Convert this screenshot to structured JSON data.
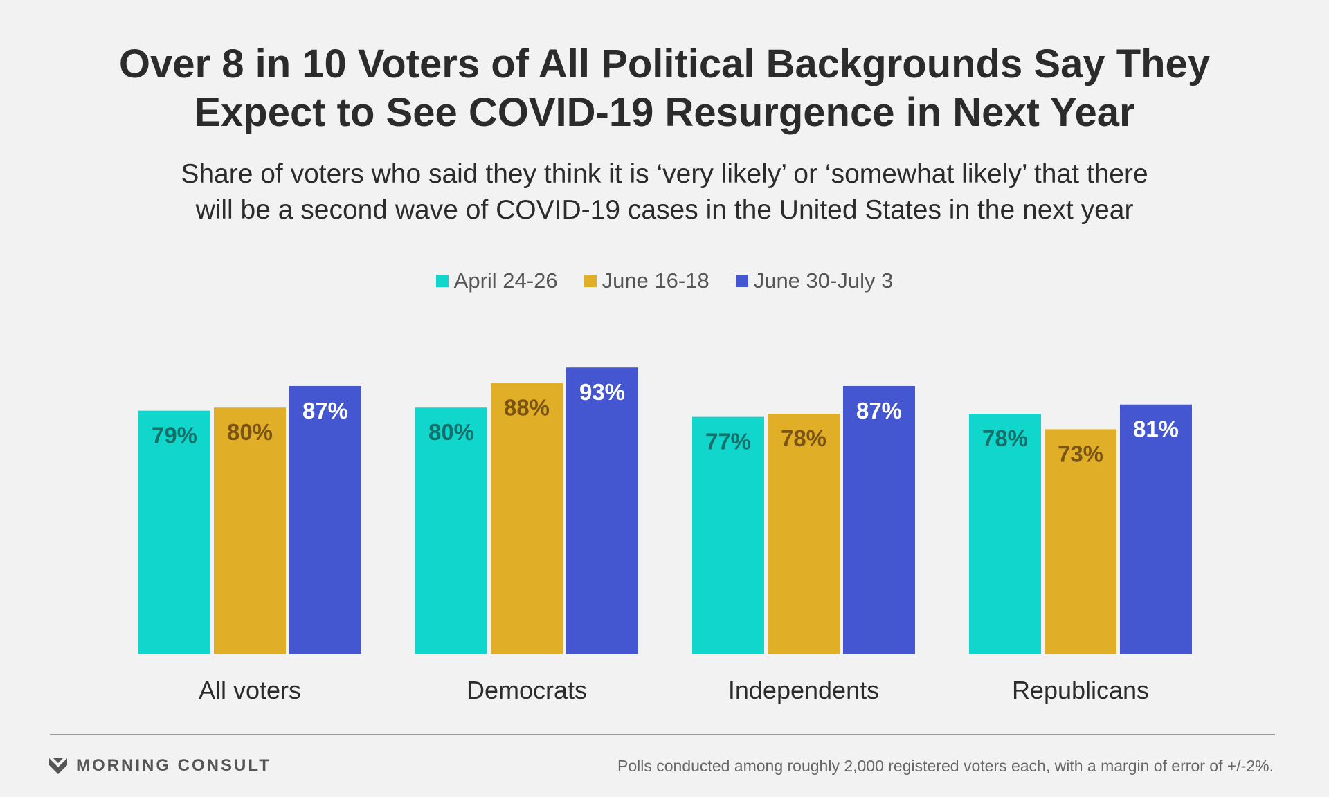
{
  "header": {
    "title_line1": "Over 8 in 10 Voters of All Political Backgrounds Say They",
    "title_line2": "Expect to See COVID-19 Resurgence in Next Year",
    "subtitle_line1": "Share of voters who said they think it is ‘very likely’ or ‘somewhat likely’ that there",
    "subtitle_line2": "will be a second wave of COVID-19 cases in the United States in the next year"
  },
  "chart_data": {
    "type": "bar",
    "categories": [
      "All voters",
      "Democrats",
      "Independents",
      "Republicans"
    ],
    "series": [
      {
        "name": "April 24-26",
        "color": "#11d6cb",
        "label_color": "#14706a",
        "values": [
          79,
          80,
          77,
          78
        ]
      },
      {
        "name": "June 16-18",
        "color": "#e0ae27",
        "label_color": "#7a5412",
        "values": [
          80,
          88,
          78,
          73
        ]
      },
      {
        "name": "June 30-July 3",
        "color": "#4557d0",
        "label_color": "#ffffff",
        "values": [
          87,
          93,
          87,
          81
        ]
      }
    ],
    "value_suffix": "%",
    "ylim": [
      0,
      100
    ],
    "grid": false,
    "legend_position": "top-center"
  },
  "footer": {
    "brand": "MORNING CONSULT",
    "note": "Polls conducted among roughly 2,000 registered voters each, with a margin of error of +/-2%."
  }
}
